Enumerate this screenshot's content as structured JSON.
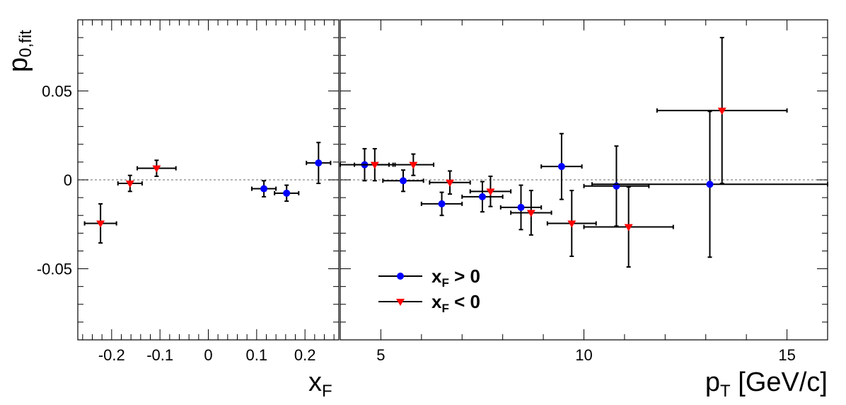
{
  "colors": {
    "positive": "#0000ff",
    "negative": "#ff0000",
    "error_bar": "#000000",
    "zero_line": "#999999"
  },
  "y_axis": {
    "label_main": "p",
    "label_sub": "0,fit",
    "range": [
      -0.09,
      0.09
    ],
    "ticks": [
      -0.05,
      0,
      0.05
    ],
    "tick_labels": [
      "-0.05",
      "0",
      "0.05"
    ]
  },
  "legend": {
    "placement": "bottom-left of right panel",
    "entries": [
      {
        "main": "x",
        "sub": "F",
        "rest": " > 0",
        "series": "positive"
      },
      {
        "main": "x",
        "sub": "F",
        "rest": " < 0",
        "series": "negative"
      }
    ]
  },
  "chart_data": [
    {
      "type": "scatter",
      "panel": "xF",
      "xlabel_main": "x",
      "xlabel_sub": "F",
      "xlim": [
        -0.27,
        0.27
      ],
      "x_ticks": [
        -0.2,
        -0.1,
        0,
        0.1,
        0.2
      ],
      "x_tick_labels": [
        "-0.2",
        "-0.1",
        "0",
        "0.1",
        "0.2"
      ],
      "series": [
        {
          "legend_index": 0,
          "color_key": "positive",
          "marker": "circle",
          "points": [
            {
              "x": 0.115,
              "y": -0.005,
              "xerr": 0.025,
              "yerr": 0.0045
            },
            {
              "x": 0.162,
              "y": -0.0075,
              "xerr": 0.025,
              "yerr": 0.0045
            },
            {
              "x": 0.228,
              "y": 0.0095,
              "xerr": 0.025,
              "yerr": 0.0115
            }
          ]
        },
        {
          "legend_index": 1,
          "color_key": "negative",
          "marker": "triangle-down",
          "points": [
            {
              "x": -0.223,
              "y": -0.0245,
              "xerr": 0.033,
              "yerr": 0.011
            },
            {
              "x": -0.162,
              "y": -0.002,
              "xerr": 0.025,
              "yerr": 0.0045
            },
            {
              "x": -0.107,
              "y": 0.0065,
              "xerr": 0.04,
              "yerr": 0.0045
            }
          ]
        }
      ]
    },
    {
      "type": "scatter",
      "panel": "pT",
      "xlabel_main": "p",
      "xlabel_sub": "T",
      "xlabel_rest": " [GeV/c]",
      "xlim": [
        4,
        16
      ],
      "x_ticks": [
        5,
        10,
        15
      ],
      "x_tick_labels": [
        "5",
        "10",
        "15"
      ],
      "series": [
        {
          "legend_index": 0,
          "color_key": "positive",
          "marker": "circle",
          "points": [
            {
              "x": 4.6,
              "y": 0.0085,
              "xerr": 0.6,
              "yerr": 0.009
            },
            {
              "x": 5.55,
              "y": -0.0005,
              "xerr": 0.5,
              "yerr": 0.006
            },
            {
              "x": 6.5,
              "y": -0.0135,
              "xerr": 0.5,
              "yerr": 0.0065
            },
            {
              "x": 7.5,
              "y": -0.0095,
              "xerr": 0.5,
              "yerr": 0.0085
            },
            {
              "x": 8.45,
              "y": -0.0155,
              "xerr": 0.5,
              "yerr": 0.0125
            },
            {
              "x": 9.45,
              "y": 0.0075,
              "xerr": 0.5,
              "yerr": 0.0185
            },
            {
              "x": 10.8,
              "y": -0.0035,
              "xerr": 0.8,
              "yerr": 0.0225
            },
            {
              "x": 13.1,
              "y": -0.0025,
              "xerr": 2.9,
              "yerr": 0.041
            }
          ]
        },
        {
          "legend_index": 1,
          "color_key": "negative",
          "marker": "triangle-down",
          "points": [
            {
              "x": 4.85,
              "y": 0.0085,
              "xerr": 0.5,
              "yerr": 0.009
            },
            {
              "x": 5.8,
              "y": 0.0085,
              "xerr": 0.5,
              "yerr": 0.006
            },
            {
              "x": 6.7,
              "y": -0.0015,
              "xerr": 0.5,
              "yerr": 0.0065
            },
            {
              "x": 7.7,
              "y": -0.0065,
              "xerr": 0.5,
              "yerr": 0.0085
            },
            {
              "x": 8.7,
              "y": -0.0185,
              "xerr": 0.5,
              "yerr": 0.0125
            },
            {
              "x": 9.7,
              "y": -0.0245,
              "xerr": 0.6,
              "yerr": 0.0185
            },
            {
              "x": 11.1,
              "y": -0.0265,
              "xerr": 1.1,
              "yerr": 0.0225
            },
            {
              "x": 13.4,
              "y": 0.039,
              "xerr": 1.6,
              "yerr": 0.041
            }
          ]
        }
      ]
    }
  ]
}
